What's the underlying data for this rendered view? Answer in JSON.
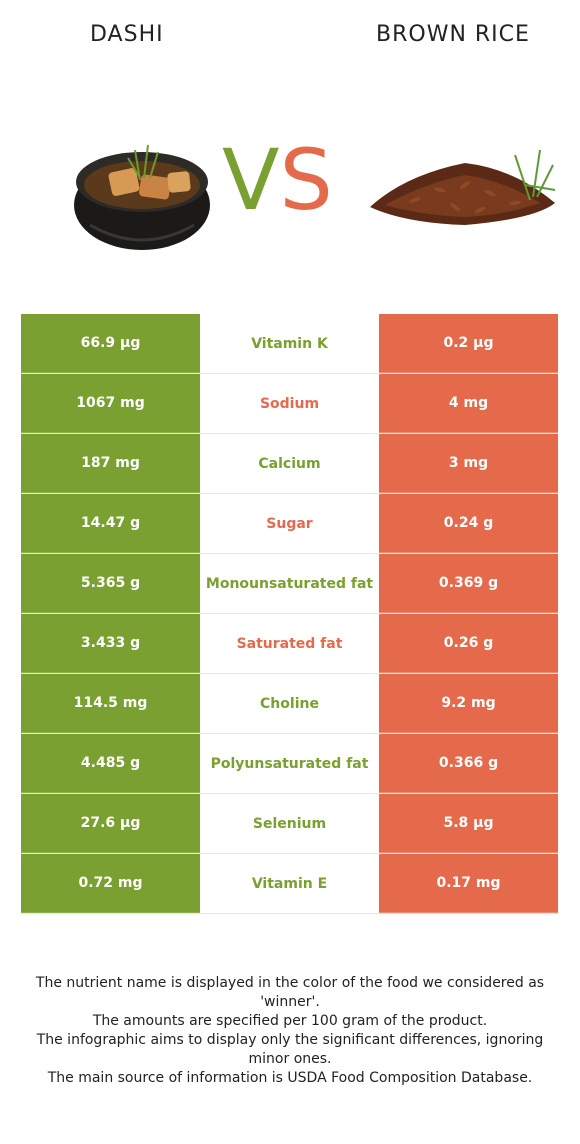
{
  "foods": {
    "left": {
      "name": "DASHI",
      "color": "#79a030",
      "image": "dashi-bowl-image"
    },
    "right": {
      "name": "BROWN RICE",
      "color": "#e56a4c",
      "image": "brown-rice-image"
    }
  },
  "vs": {
    "v": "V",
    "s": "S"
  },
  "rows": [
    {
      "left": "66.9 µg",
      "nutrient": "Vitamin K",
      "right": "0.2 µg",
      "winner": "left"
    },
    {
      "left": "1067 mg",
      "nutrient": "Sodium",
      "right": "4 mg",
      "winner": "right"
    },
    {
      "left": "187 mg",
      "nutrient": "Calcium",
      "right": "3 mg",
      "winner": "left"
    },
    {
      "left": "14.47 g",
      "nutrient": "Sugar",
      "right": "0.24 g",
      "winner": "right"
    },
    {
      "left": "5.365 g",
      "nutrient": "Monounsaturated fat",
      "right": "0.369 g",
      "winner": "left"
    },
    {
      "left": "3.433 g",
      "nutrient": "Saturated fat",
      "right": "0.26 g",
      "winner": "right"
    },
    {
      "left": "114.5 mg",
      "nutrient": "Choline",
      "right": "9.2 mg",
      "winner": "left"
    },
    {
      "left": "4.485 g",
      "nutrient": "Polyunsaturated fat",
      "right": "0.366 g",
      "winner": "left"
    },
    {
      "left": "27.6 µg",
      "nutrient": "Selenium",
      "right": "5.8 µg",
      "winner": "left"
    },
    {
      "left": "0.72 mg",
      "nutrient": "Vitamin E",
      "right": "0.17 mg",
      "winner": "left"
    }
  ],
  "footer": [
    "The nutrient name is displayed in the color of the food we considered as 'winner'.",
    "The amounts are specified per 100 gram of the product.",
    "The infographic aims to display only the significant differences, ignoring minor ones.",
    "The main source of information is USDA Food Composition Database."
  ]
}
